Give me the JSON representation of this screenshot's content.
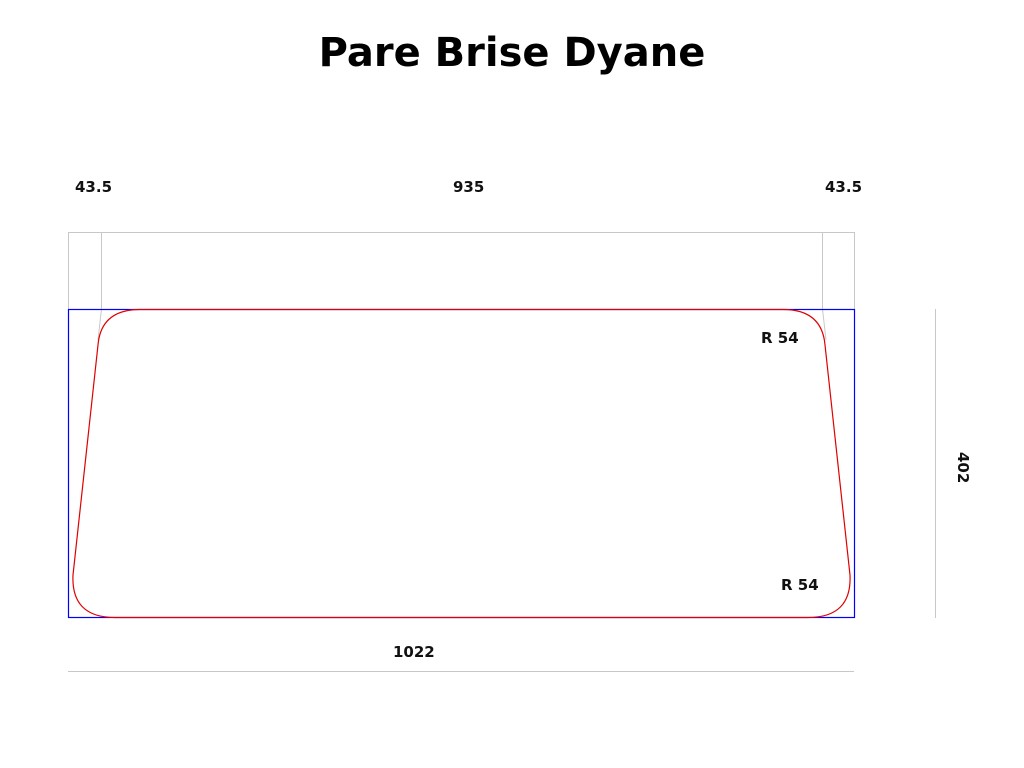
{
  "title": "Pare Brise Dyane",
  "dimensions": {
    "left_offset": "43.5",
    "top_width": "935",
    "right_offset": "43.5",
    "radius_top": "R 54",
    "radius_bottom": "R 54",
    "height": "402",
    "bottom_width": "1022"
  },
  "colors": {
    "outline": "#e00000",
    "bounding_box": "#0000ff",
    "dimension_lines": "#c8c8c8"
  }
}
